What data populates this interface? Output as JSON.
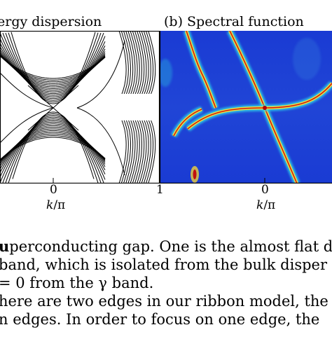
{
  "figure": {
    "panel_a": {
      "title": "ergy dispersion",
      "xtick_center": "0",
      "xtick_right": "1",
      "xlabel_var": "k",
      "xlabel_unit": "/π"
    },
    "panel_b": {
      "title": "(b) Spectral function",
      "xtick_center": "0",
      "xlabel_var": "k",
      "xlabel_unit": "/π"
    }
  },
  "body_text": {
    "line1_bold": "u",
    "line1_rest": "perconducting gap.  One is the almost flat di",
    "line2": "band, which is isolated from the bulk disper",
    "line3": "= 0 from the γ band.",
    "line4": "here are two edges in our ribbon model, the s",
    "line5": "n edges.  In order to focus on one edge, the"
  },
  "colors": {
    "heatmap_background": "#1c3fd0",
    "heatmap_peak": "#b00000",
    "line_color": "#000000"
  }
}
